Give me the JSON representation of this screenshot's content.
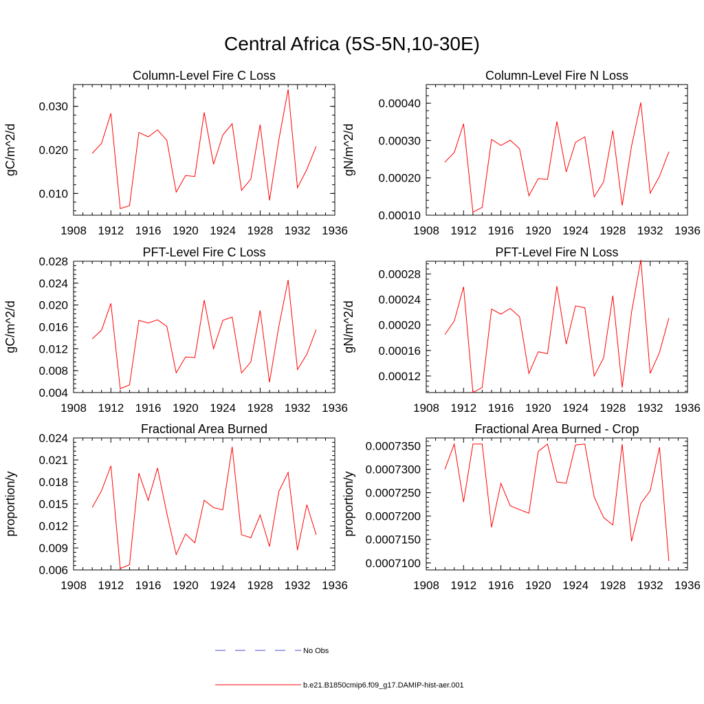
{
  "title": "Central Africa (5S-5N,10-30E)",
  "colors": {
    "model_line": "#ff0000",
    "obs_line": "#4b4bd6",
    "axes": "#000000"
  },
  "legend": [
    {
      "label": "No Obs",
      "style": "dashed",
      "color": "#4b4bd6"
    },
    {
      "label": "b.e21.B1850cmip6.f09_g17.DAMIP-hist-aer.001",
      "style": "solid",
      "color": "#ff0000"
    }
  ],
  "chart_data": [
    {
      "type": "line",
      "title": "Column-Level Fire C Loss",
      "ylabel": "gC/m^2/d",
      "xlim": [
        1908,
        1936
      ],
      "xticks": [
        "1908",
        "1912",
        "1916",
        "1920",
        "1924",
        "1928",
        "1932",
        "1936"
      ],
      "ylim": [
        0.005,
        0.035
      ],
      "yticks": [
        "0.010",
        "0.020",
        "0.030"
      ],
      "x": [
        1910,
        1911,
        1912,
        1913,
        1914,
        1915,
        1916,
        1917,
        1918,
        1919,
        1920,
        1921,
        1922,
        1923,
        1924,
        1925,
        1926,
        1927,
        1928,
        1929,
        1930,
        1931,
        1932,
        1933,
        1934
      ],
      "series": [
        {
          "name": "b.e21.B1850cmip6.f09_g17.DAMIP-hist-aer.001",
          "values": [
            0.0192,
            0.0215,
            0.0284,
            0.0065,
            0.0072,
            0.024,
            0.023,
            0.0246,
            0.0222,
            0.0103,
            0.0141,
            0.0139,
            0.0286,
            0.0167,
            0.0234,
            0.026,
            0.0107,
            0.0133,
            0.0258,
            0.0084,
            0.0223,
            0.0339,
            0.0113,
            0.0155,
            0.0208
          ]
        }
      ]
    },
    {
      "type": "line",
      "title": "Column-Level Fire N Loss",
      "ylabel": "gN/m^2/d",
      "xlim": [
        1908,
        1936
      ],
      "xticks": [
        "1908",
        "1912",
        "1916",
        "1920",
        "1924",
        "1928",
        "1932",
        "1936"
      ],
      "ylim": [
        0.0001,
        0.00045
      ],
      "yticks": [
        "0.00010",
        "0.00020",
        "0.00030",
        "0.00040"
      ],
      "x": [
        1910,
        1911,
        1912,
        1913,
        1914,
        1915,
        1916,
        1917,
        1918,
        1919,
        1920,
        1921,
        1922,
        1923,
        1924,
        1925,
        1926,
        1927,
        1928,
        1929,
        1930,
        1931,
        1932,
        1933,
        1934
      ],
      "series": [
        {
          "name": "b.e21.B1850cmip6.f09_g17.DAMIP-hist-aer.001",
          "values": [
            0.000242,
            0.000268,
            0.000345,
            0.000108,
            0.000121,
            0.000303,
            0.000287,
            0.000301,
            0.000278,
            0.000152,
            0.000198,
            0.000196,
            0.000351,
            0.000216,
            0.000295,
            0.00031,
            0.000149,
            0.000189,
            0.000327,
            0.000126,
            0.000285,
            0.000402,
            0.000159,
            0.000204,
            0.00027
          ]
        }
      ]
    },
    {
      "type": "line",
      "title": "PFT-Level Fire C Loss",
      "ylabel": "gC/m^2/d",
      "xlim": [
        1908,
        1936
      ],
      "xticks": [
        "1908",
        "1912",
        "1916",
        "1920",
        "1924",
        "1928",
        "1932",
        "1936"
      ],
      "ylim": [
        0.004,
        0.028
      ],
      "yticks": [
        "0.004",
        "0.008",
        "0.012",
        "0.016",
        "0.020",
        "0.024",
        "0.028"
      ],
      "x": [
        1910,
        1911,
        1912,
        1913,
        1914,
        1915,
        1916,
        1917,
        1918,
        1919,
        1920,
        1921,
        1922,
        1923,
        1924,
        1925,
        1926,
        1927,
        1928,
        1929,
        1930,
        1931,
        1932,
        1933,
        1934
      ],
      "series": [
        {
          "name": "b.e21.B1850cmip6.f09_g17.DAMIP-hist-aer.001",
          "values": [
            0.0138,
            0.0154,
            0.0203,
            0.0047,
            0.0054,
            0.0172,
            0.0167,
            0.0173,
            0.0161,
            0.0076,
            0.0105,
            0.0104,
            0.0209,
            0.012,
            0.0172,
            0.0178,
            0.0076,
            0.0096,
            0.019,
            0.0059,
            0.0161,
            0.0246,
            0.0082,
            0.011,
            0.0155
          ]
        }
      ]
    },
    {
      "type": "line",
      "title": "PFT-Level Fire N Loss",
      "ylabel": "gN/m^2/d",
      "xlim": [
        1908,
        1936
      ],
      "xticks": [
        "1908",
        "1912",
        "1916",
        "1920",
        "1924",
        "1928",
        "1932",
        "1936"
      ],
      "ylim": [
        9.4e-05,
        0.0003
      ],
      "yticks": [
        "0.00012",
        "0.00016",
        "0.00020",
        "0.00024",
        "0.00028"
      ],
      "x": [
        1910,
        1911,
        1912,
        1913,
        1914,
        1915,
        1916,
        1917,
        1918,
        1919,
        1920,
        1921,
        1922,
        1923,
        1924,
        1925,
        1926,
        1927,
        1928,
        1929,
        1930,
        1931,
        1932,
        1933,
        1934
      ],
      "series": [
        {
          "name": "b.e21.B1850cmip6.f09_g17.DAMIP-hist-aer.001",
          "values": [
            0.000185,
            0.000206,
            0.00026,
            9.4e-05,
            0.000102,
            0.000225,
            0.000217,
            0.000226,
            0.000213,
            0.000124,
            0.000158,
            0.000155,
            0.000261,
            0.00017,
            0.00023,
            0.000227,
            0.00012,
            0.000148,
            0.000246,
            0.000102,
            0.00022,
            0.000302,
            0.000124,
            0.000157,
            0.000211
          ]
        }
      ]
    },
    {
      "type": "line",
      "title": "Fractional Area Burned",
      "ylabel": "proportion/y",
      "xlim": [
        1908,
        1936
      ],
      "xticks": [
        "1908",
        "1912",
        "1916",
        "1920",
        "1924",
        "1928",
        "1932",
        "1936"
      ],
      "ylim": [
        0.006,
        0.024
      ],
      "yticks": [
        "0.006",
        "0.009",
        "0.012",
        "0.015",
        "0.018",
        "0.021",
        "0.024"
      ],
      "x": [
        1910,
        1911,
        1912,
        1913,
        1914,
        1915,
        1916,
        1917,
        1918,
        1919,
        1920,
        1921,
        1922,
        1923,
        1924,
        1925,
        1926,
        1927,
        1928,
        1929,
        1930,
        1931,
        1932,
        1933,
        1934
      ],
      "series": [
        {
          "name": "b.e21.B1850cmip6.f09_g17.DAMIP-hist-aer.001",
          "values": [
            0.0145,
            0.0168,
            0.0202,
            0.0062,
            0.0067,
            0.0192,
            0.0155,
            0.0199,
            0.0137,
            0.0081,
            0.0109,
            0.0097,
            0.0155,
            0.0145,
            0.0142,
            0.0228,
            0.0108,
            0.0104,
            0.0135,
            0.0092,
            0.0167,
            0.0193,
            0.0087,
            0.0149,
            0.0108
          ]
        }
      ]
    },
    {
      "type": "line",
      "title": "Fractional Area Burned - Crop",
      "ylabel": "proportion/y",
      "xlim": [
        1908,
        1936
      ],
      "xticks": [
        "1908",
        "1912",
        "1916",
        "1920",
        "1924",
        "1928",
        "1932",
        "1936"
      ],
      "ylim": [
        0.0007085,
        0.0007367
      ],
      "yticks": [
        "0.0007100",
        "0.0007150",
        "0.0007200",
        "0.0007250",
        "0.0007300",
        "0.0007350"
      ],
      "x": [
        1910,
        1911,
        1912,
        1913,
        1914,
        1915,
        1916,
        1917,
        1918,
        1919,
        1920,
        1921,
        1922,
        1923,
        1924,
        1925,
        1926,
        1927,
        1928,
        1929,
        1930,
        1931,
        1932,
        1933,
        1934
      ],
      "series": [
        {
          "name": "b.e21.B1850cmip6.f09_g17.DAMIP-hist-aer.001",
          "values": [
            0.00073,
            0.0007354,
            0.000723,
            0.0007354,
            0.0007354,
            0.0007176,
            0.000727,
            0.0007222,
            0.0007214,
            0.0007206,
            0.0007338,
            0.0007354,
            0.0007273,
            0.000727,
            0.0007352,
            0.0007354,
            0.0007241,
            0.0007197,
            0.0007181,
            0.0007354,
            0.0007146,
            0.0007227,
            0.0007254,
            0.0007347,
            0.0007104
          ]
        }
      ]
    }
  ]
}
